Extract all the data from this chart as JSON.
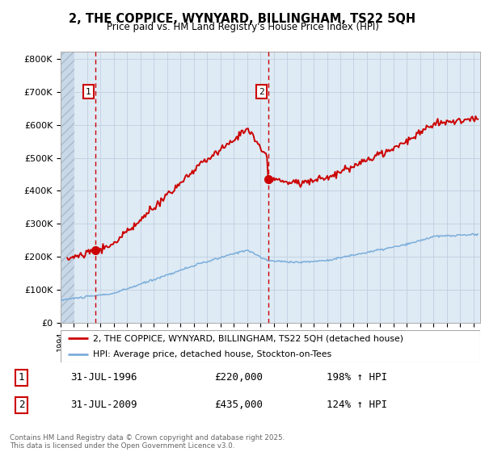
{
  "title_line1": "2, THE COPPICE, WYNYARD, BILLINGHAM, TS22 5QH",
  "title_line2": "Price paid vs. HM Land Registry's House Price Index (HPI)",
  "ylabel_ticks": [
    "£0",
    "£100K",
    "£200K",
    "£300K",
    "£400K",
    "£500K",
    "£600K",
    "£700K",
    "£800K"
  ],
  "ytick_values": [
    0,
    100000,
    200000,
    300000,
    400000,
    500000,
    600000,
    700000,
    800000
  ],
  "ylim": [
    0,
    820000
  ],
  "xlim_start": 1994.0,
  "xlim_end": 2025.5,
  "hpi_color": "#7aaddb",
  "price_color": "#cc0000",
  "sale1_x": 1996.58,
  "sale1_y": 220000,
  "sale2_x": 2009.58,
  "sale2_y": 435000,
  "legend_label1": "2, THE COPPICE, WYNYARD, BILLINGHAM, TS22 5QH (detached house)",
  "legend_label2": "HPI: Average price, detached house, Stockton-on-Tees",
  "annotation1_label": "1",
  "annotation2_label": "2",
  "annotation1_date": "31-JUL-1996",
  "annotation1_price": "£220,000",
  "annotation1_hpi": "198% ↑ HPI",
  "annotation2_date": "31-JUL-2009",
  "annotation2_price": "£435,000",
  "annotation2_hpi": "124% ↑ HPI",
  "footer": "Contains HM Land Registry data © Crown copyright and database right 2025.\nThis data is licensed under the Open Government Licence v3.0.",
  "background_color": "#deeaf4",
  "grid_color": "#c0cfe0"
}
